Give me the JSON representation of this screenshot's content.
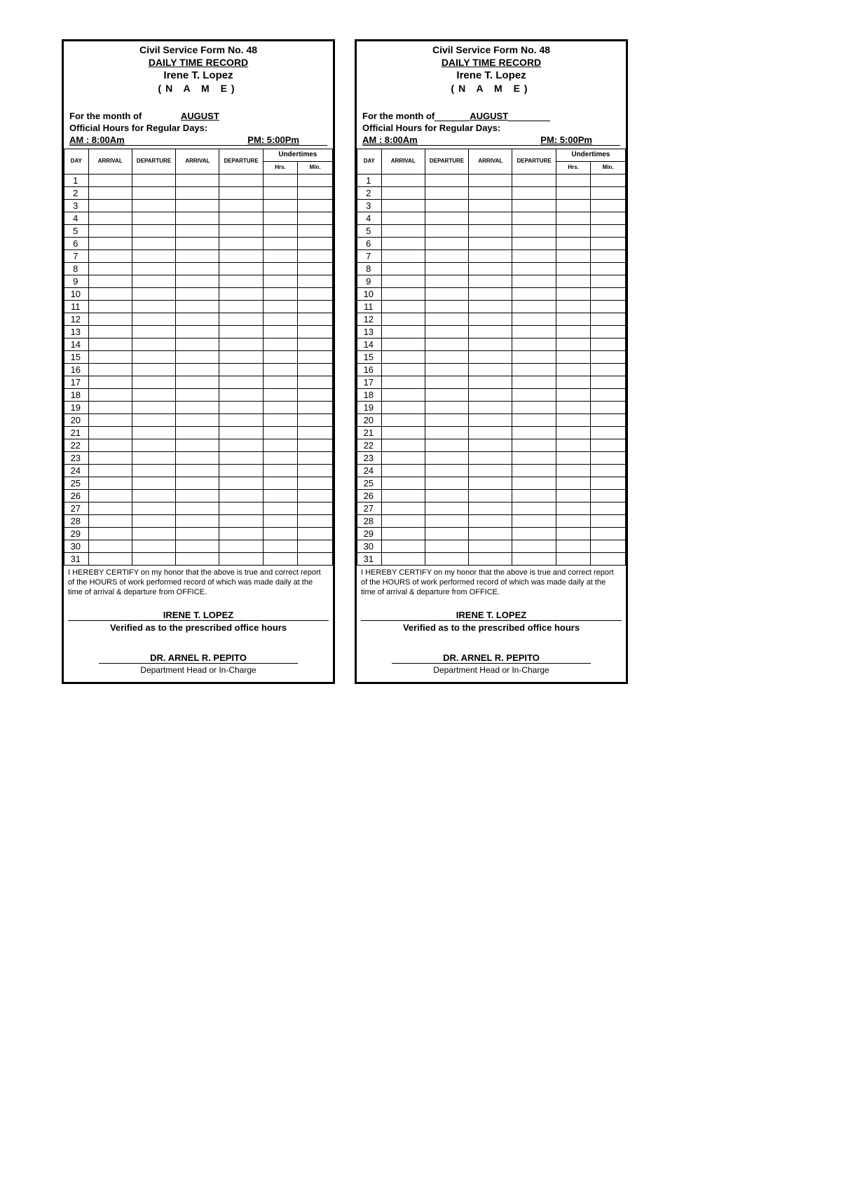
{
  "form_no": "Civil Service Form No. 48",
  "title": "DAILY TIME RECORD",
  "employee_name": "Irene T. Lopez",
  "name_label": "(N  A  M  E)",
  "month_label": "For the month of",
  "month": "AUGUST",
  "official_hours_label": "Official Hours for Regular Days:",
  "am_label": "AM :  8:00Am",
  "pm_label": "PM: 5:00Pm",
  "columns": {
    "day": "DAY",
    "arrival": "ARRIVAL",
    "departure": "DEPARTURE",
    "undertimes": "Undertimes",
    "hrs": "Hrs.",
    "min": "Min."
  },
  "days": 31,
  "certification": "I HEREBY CERTIFY on my honor that the above is true and correct report of the HOURS of work performed record of which was made daily at the time of arrival & departure from OFFICE.",
  "signatory": "IRENE T. LOPEZ",
  "verified_label": "Verified as to the prescribed office hours",
  "dept_head": "DR. ARNEL R. PEPITO",
  "dept_head_label": "Department Head or In-Charge"
}
